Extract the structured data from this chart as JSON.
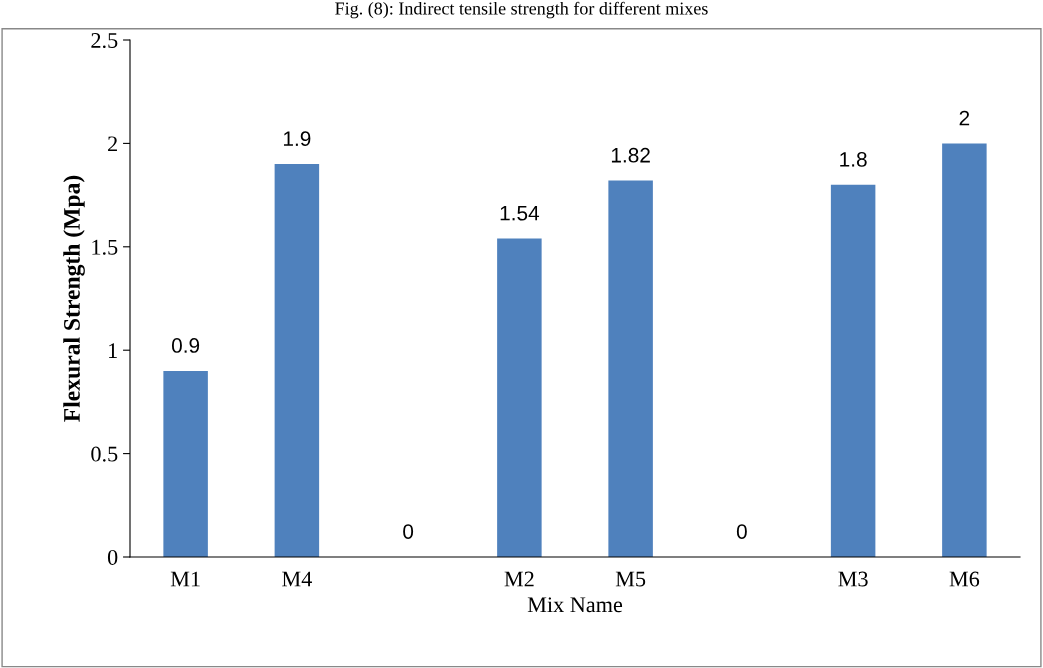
{
  "chart_data": {
    "type": "bar",
    "title": "Fig. (8): Indirect tensile strength for different mixes",
    "xlabel": "Mix Name",
    "ylabel": "Flexural Strength (Mpa)",
    "categories": [
      "M1",
      "M4",
      null,
      "M2",
      "M5",
      null,
      "M3",
      "M6"
    ],
    "values": [
      0.9,
      1.9,
      0,
      1.54,
      1.82,
      0,
      1.8,
      2
    ],
    "color": "#4f81bd",
    "ylim": [
      0,
      2.5
    ],
    "yticks": [
      0,
      0.5,
      1,
      1.5,
      2,
      2.5
    ],
    "data_labels": true,
    "grid": false,
    "legend": false
  }
}
